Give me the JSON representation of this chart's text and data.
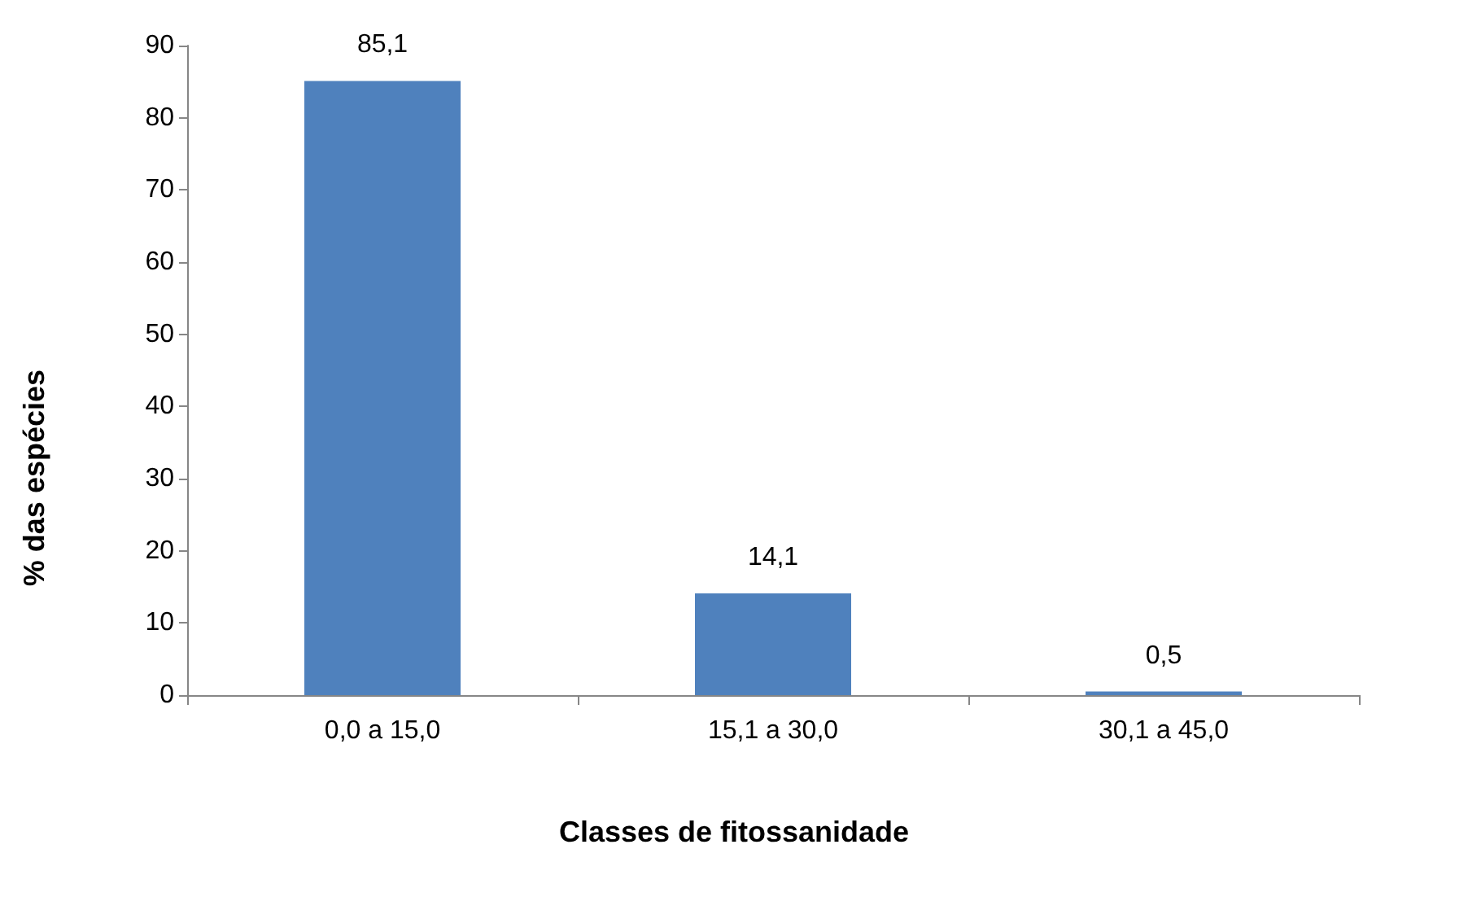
{
  "chart_data": {
    "type": "bar",
    "xlabel": "Classes de fitossanidade",
    "ylabel": "% das espécies",
    "categories": [
      "0,0 a 15,0",
      "15,1 a 30,0",
      "30,1 a 45,0"
    ],
    "values": [
      85.1,
      14.1,
      0.5
    ],
    "value_labels": [
      "85,1",
      "14,1",
      "0,5"
    ],
    "color": "#4f81bd",
    "ylim": [
      0,
      90
    ],
    "yticks": [
      0,
      10,
      20,
      30,
      40,
      50,
      60,
      70,
      80,
      90
    ],
    "grid": false
  }
}
